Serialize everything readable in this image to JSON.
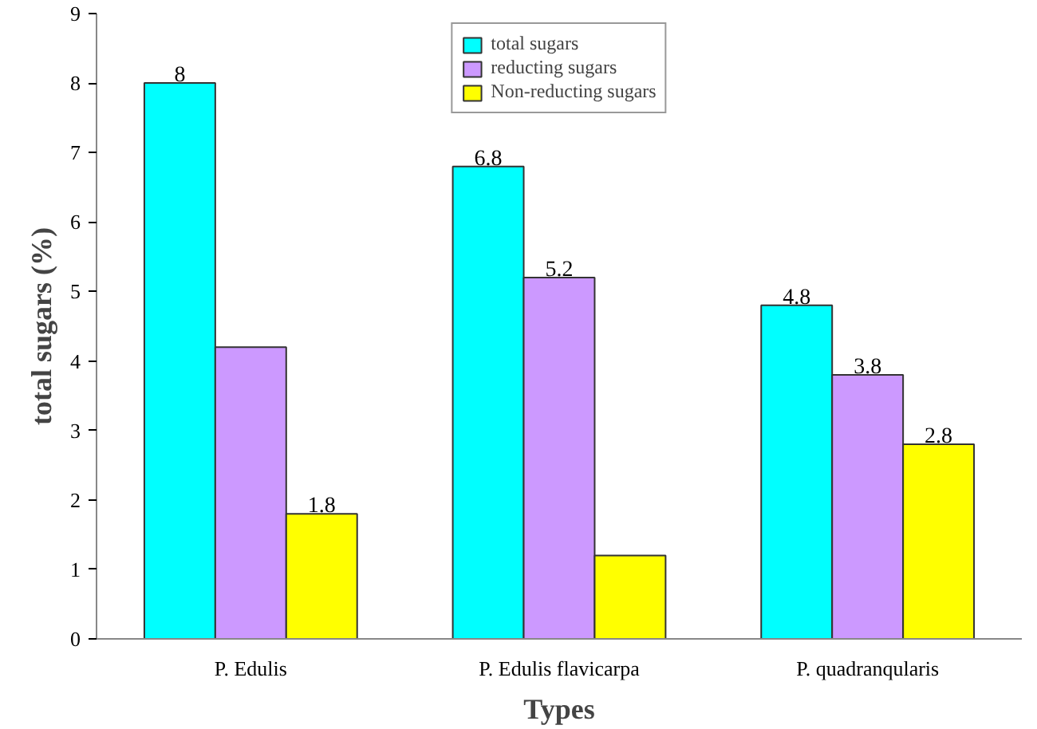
{
  "chart_data": {
    "type": "bar",
    "xlabel": "Types",
    "ylabel": "total sugars (%)",
    "categories": [
      "P. Edulis",
      "P. Edulis flavicarpa",
      "P. quadranqularis"
    ],
    "series": [
      {
        "name": "total sugars",
        "color": "#00ffff",
        "values": [
          8,
          6.8,
          4.8
        ],
        "value_labels": [
          "8",
          "6.8",
          "4.8"
        ]
      },
      {
        "name": "reducting sugars",
        "color": "#cc99ff",
        "values": [
          4.2,
          5.2,
          3.8
        ],
        "value_labels": [
          null,
          "5.2",
          "3.8"
        ]
      },
      {
        "name": "Non-reducting sugars",
        "color": "#ffff00",
        "values": [
          1.8,
          1.2,
          2.8
        ],
        "value_labels": [
          "1.8",
          null,
          "2.8"
        ]
      }
    ],
    "ylim": [
      0,
      9
    ],
    "yticks": [
      0,
      1,
      2,
      3,
      4,
      5,
      6,
      7,
      8,
      9
    ],
    "grid": false,
    "legend": "top"
  }
}
